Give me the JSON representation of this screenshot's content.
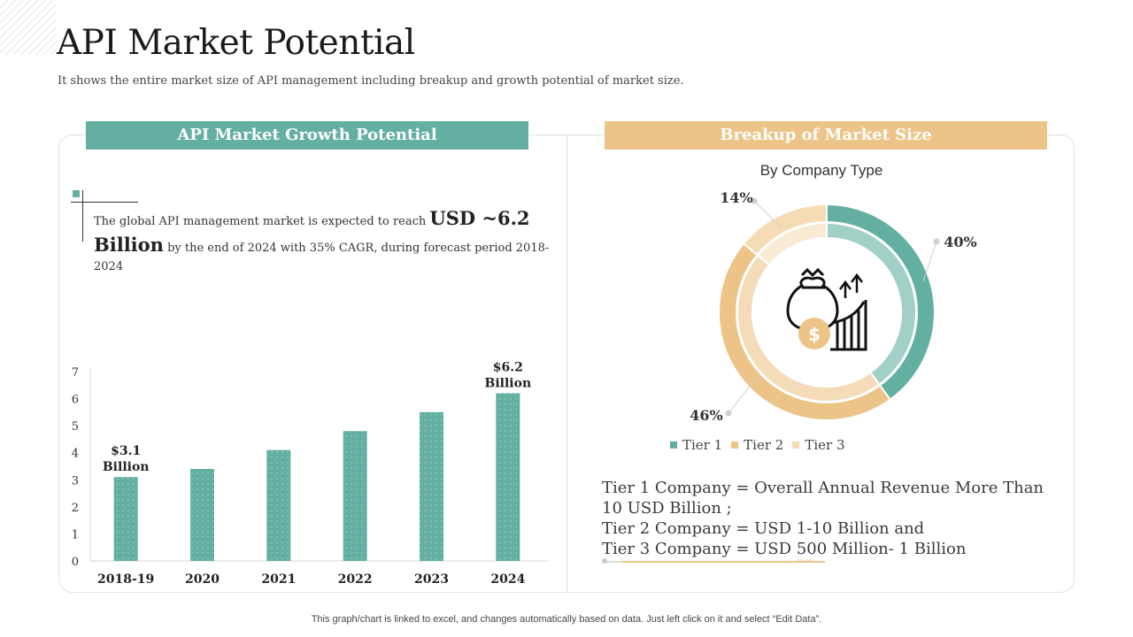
{
  "page": {
    "title": "API Market Potential",
    "subtitle": "It shows the entire market size of API management including breakup and growth potential of market size.",
    "footer": "This graph/chart is linked to excel, and changes automatically based on data. Just left click on it and select “Edit Data”."
  },
  "left_panel": {
    "header": "API Market Growth Potential",
    "description": {
      "part1": "The global API management market is expected to reach ",
      "highlight": "USD ~6.2 Billion",
      "part2": " by the end of 2024 with 35% CAGR, during forecast period 2018-2024"
    }
  },
  "right_panel": {
    "header": "Breakup of  Market Size",
    "tier_notes": [
      "Tier 1 Company = Overall Annual Revenue More Than 10 USD Billion ;",
      "Tier 2 Company = USD 1-10 Billion and",
      "Tier 3 Company = USD 500 Million- 1 Billion"
    ]
  },
  "colors": {
    "teal": "#63b0a2",
    "gold": "#ecc488",
    "light_gold": "#f5dcb5"
  },
  "icons": [
    "money-bag-icon",
    "dollar-coin-icon",
    "growth-arrows-icon"
  ],
  "chart_data": [
    {
      "type": "bar",
      "categories": [
        "2018-19",
        "2020",
        "2021",
        "2022",
        "2023",
        "2024"
      ],
      "values": [
        3.1,
        3.4,
        4.1,
        4.8,
        5.5,
        6.2
      ],
      "ylim": [
        0,
        7
      ],
      "yticks": [
        "0",
        "1",
        "2",
        "3",
        "4",
        "5",
        "6",
        "7"
      ],
      "annotations": [
        {
          "index": 0,
          "lines": [
            "$3.1",
            "Billion"
          ]
        },
        {
          "index": 5,
          "lines": [
            "$6.2",
            "Billion"
          ]
        }
      ],
      "grid": false,
      "color": "#63b0a2"
    },
    {
      "type": "pie",
      "title": "By Company Type",
      "labels": [
        "Tier 1",
        "Tier 2",
        "Tier 3"
      ],
      "values": [
        40,
        46,
        14
      ],
      "value_labels": [
        "40%",
        "46%",
        "14%"
      ],
      "colors": [
        "#63b0a2",
        "#ecc488",
        "#f5dcb5"
      ],
      "legend": "bottom"
    }
  ]
}
